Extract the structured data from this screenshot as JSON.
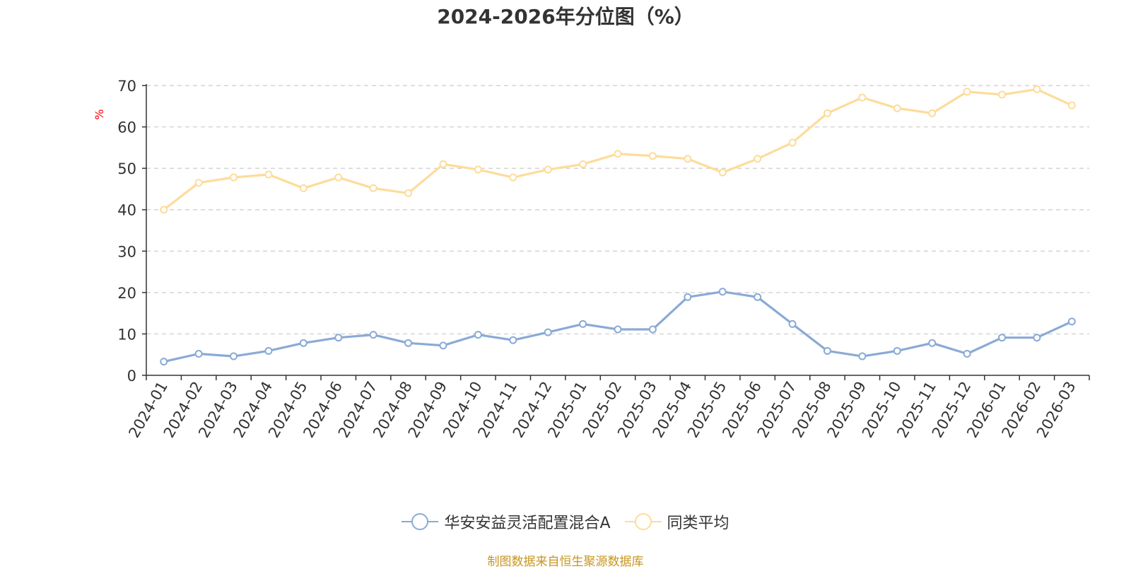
{
  "title": "2024-2026年分位图（%）",
  "source": "制图数据来自恒生聚源数据库",
  "colors": {
    "series_a": "#8aaad6",
    "series_b": "#fddc9a",
    "grid": "#cccccc",
    "axis": "#333333",
    "ylabel": "#ff0000",
    "source": "#c8961e"
  },
  "chart_data": {
    "type": "line",
    "ylabel": "%",
    "ylim": [
      0,
      70
    ],
    "yticks": [
      0,
      10,
      20,
      30,
      40,
      50,
      60,
      70
    ],
    "grid": true,
    "legend_position": "bottom",
    "categories": [
      "2024-01",
      "2024-02",
      "2024-03",
      "2024-04",
      "2024-05",
      "2024-06",
      "2024-07",
      "2024-08",
      "2024-09",
      "2024-10",
      "2024-11",
      "2024-12",
      "2025-01",
      "2025-02",
      "2025-03",
      "2025-04",
      "2025-05",
      "2025-06",
      "2025-07",
      "2025-08",
      "2025-09",
      "2025-10",
      "2025-11",
      "2025-12",
      "2026-01",
      "2026-02",
      "2026-03"
    ],
    "series": [
      {
        "name": "华安安益灵活配置混合A",
        "color": "#8aaad6",
        "values": [
          3.3,
          5.2,
          4.6,
          5.9,
          7.8,
          9.1,
          9.8,
          7.8,
          7.2,
          9.8,
          8.5,
          10.4,
          12.4,
          11.1,
          11.1,
          18.9,
          20.2,
          18.9,
          12.4,
          5.9,
          4.6,
          5.9,
          7.8,
          5.2,
          9.1,
          9.1,
          13.0
        ]
      },
      {
        "name": "同类平均",
        "color": "#fddc9a",
        "values": [
          40.0,
          46.5,
          47.8,
          48.5,
          45.2,
          47.8,
          45.2,
          44.0,
          51.0,
          49.7,
          47.8,
          49.7,
          51.0,
          53.5,
          53.0,
          52.3,
          49.0,
          52.3,
          56.2,
          63.3,
          67.1,
          64.5,
          63.3,
          68.5,
          67.8,
          69.1,
          65.2
        ]
      }
    ]
  }
}
